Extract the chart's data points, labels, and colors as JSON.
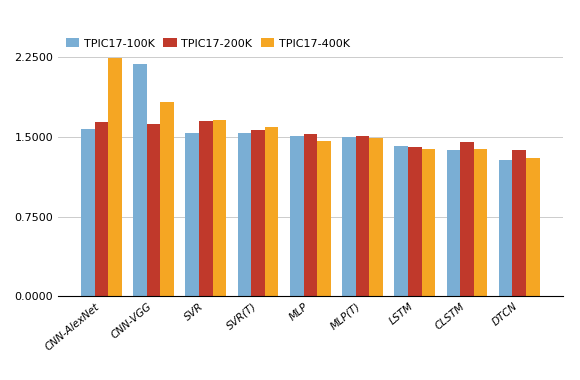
{
  "categories": [
    "CNN-AlexNet",
    "CNN-VGG",
    "SVR",
    "SVR(T)",
    "MLP",
    "MLP(T)",
    "LSTM",
    "CLSTM",
    "DTCN"
  ],
  "series": {
    "TPIC17-100K": [
      1.57,
      2.18,
      1.535,
      1.535,
      1.505,
      1.498,
      1.415,
      1.375,
      1.285
    ],
    "TPIC17-200K": [
      1.635,
      1.62,
      1.645,
      1.565,
      1.525,
      1.505,
      1.405,
      1.455,
      1.38
    ],
    "TPIC17-400K": [
      2.245,
      1.83,
      1.655,
      1.595,
      1.46,
      1.49,
      1.385,
      1.385,
      1.305
    ]
  },
  "colors": {
    "TPIC17-100K": "#7aaed4",
    "TPIC17-200K": "#c0392b",
    "TPIC17-400K": "#f5a623"
  },
  "ylim": [
    0.0,
    2.5
  ],
  "yticks": [
    0.0,
    0.75,
    1.5,
    2.25
  ],
  "ytick_labels": [
    "0.0000",
    "0.7500",
    "1.5000",
    "2.2500"
  ],
  "bar_width": 0.26,
  "background_color": "#ffffff",
  "grid_color": "#cccccc",
  "figsize": [
    5.8,
    3.8
  ],
  "dpi": 100
}
